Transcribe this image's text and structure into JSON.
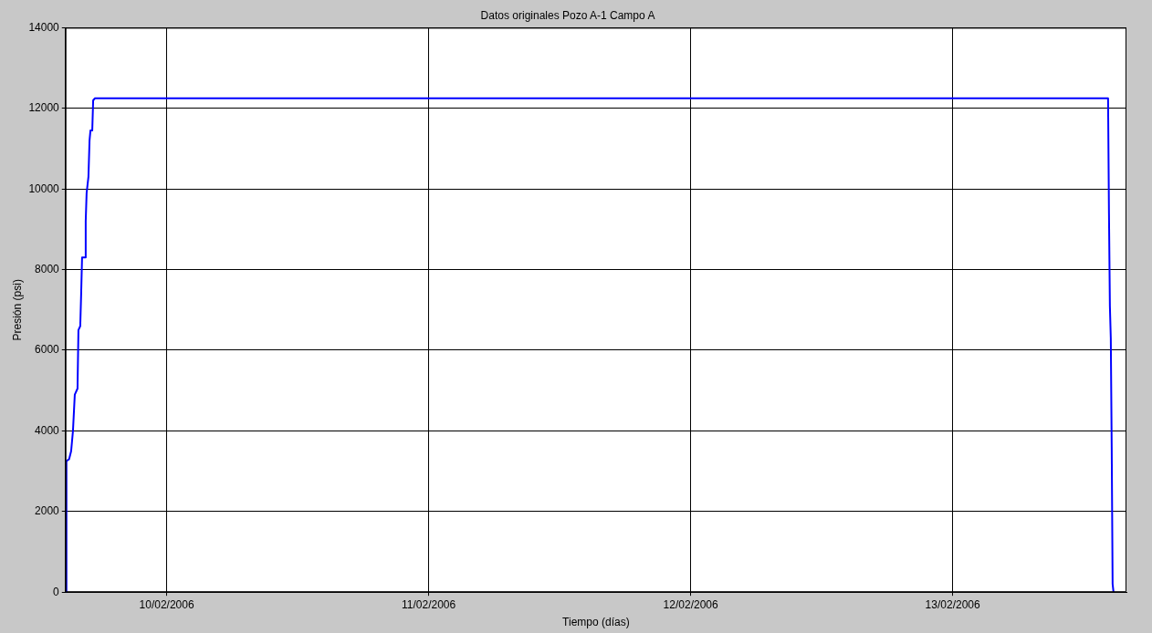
{
  "chart_data": {
    "type": "line",
    "title": "Datos originales Pozo A-1 Campo A",
    "xlabel": "Tiempo (días)",
    "ylabel": "Presión (psi)",
    "x": [
      "2006-02-09T14:49",
      "2006-02-09T14:49",
      "2006-02-09T15:04",
      "2006-02-09T15:15",
      "2006-02-09T15:25",
      "2006-02-09T15:35",
      "2006-02-09T15:50",
      "2006-02-09T15:55",
      "2006-02-09T16:05",
      "2006-02-09T16:10",
      "2006-02-09T16:15",
      "2006-02-09T16:31",
      "2006-02-09T16:35",
      "2006-02-09T16:40",
      "2006-02-09T16:50",
      "2006-02-09T16:56",
      "2006-02-09T17:01",
      "2006-02-09T17:11",
      "2006-02-09T17:16",
      "2006-02-09T17:26",
      "2006-02-13T14:14",
      "2006-02-13T14:19",
      "2006-02-13T14:24",
      "2006-02-13T14:29",
      "2006-02-13T14:34",
      "2006-02-13T14:39",
      "2006-02-13T14:44"
    ],
    "series": [
      {
        "color": "#0000ff",
        "values": [
          0,
          3250,
          3300,
          3500,
          4000,
          4900,
          5050,
          6500,
          6600,
          7400,
          8300,
          8300,
          9200,
          9900,
          10300,
          11200,
          11450,
          11450,
          12200,
          12250,
          12250,
          9400,
          7100,
          6300,
          3600,
          200,
          0
        ]
      }
    ],
    "xlim": [
      "2006-02-09T14:44",
      "2006-02-13T15:55"
    ],
    "xticks": [
      {
        "value": "2006-02-10",
        "label": "10/02/2006"
      },
      {
        "value": "2006-02-11",
        "label": "11/02/2006"
      },
      {
        "value": "2006-02-12",
        "label": "12/02/2006"
      },
      {
        "value": "2006-02-13",
        "label": "13/02/2006"
      }
    ],
    "ylim": [
      0,
      14000
    ],
    "yticks": [
      0,
      2000,
      4000,
      6000,
      8000,
      10000,
      12000,
      14000
    ],
    "grid": true,
    "legend": false,
    "marker": "none",
    "line_style": "solid"
  }
}
